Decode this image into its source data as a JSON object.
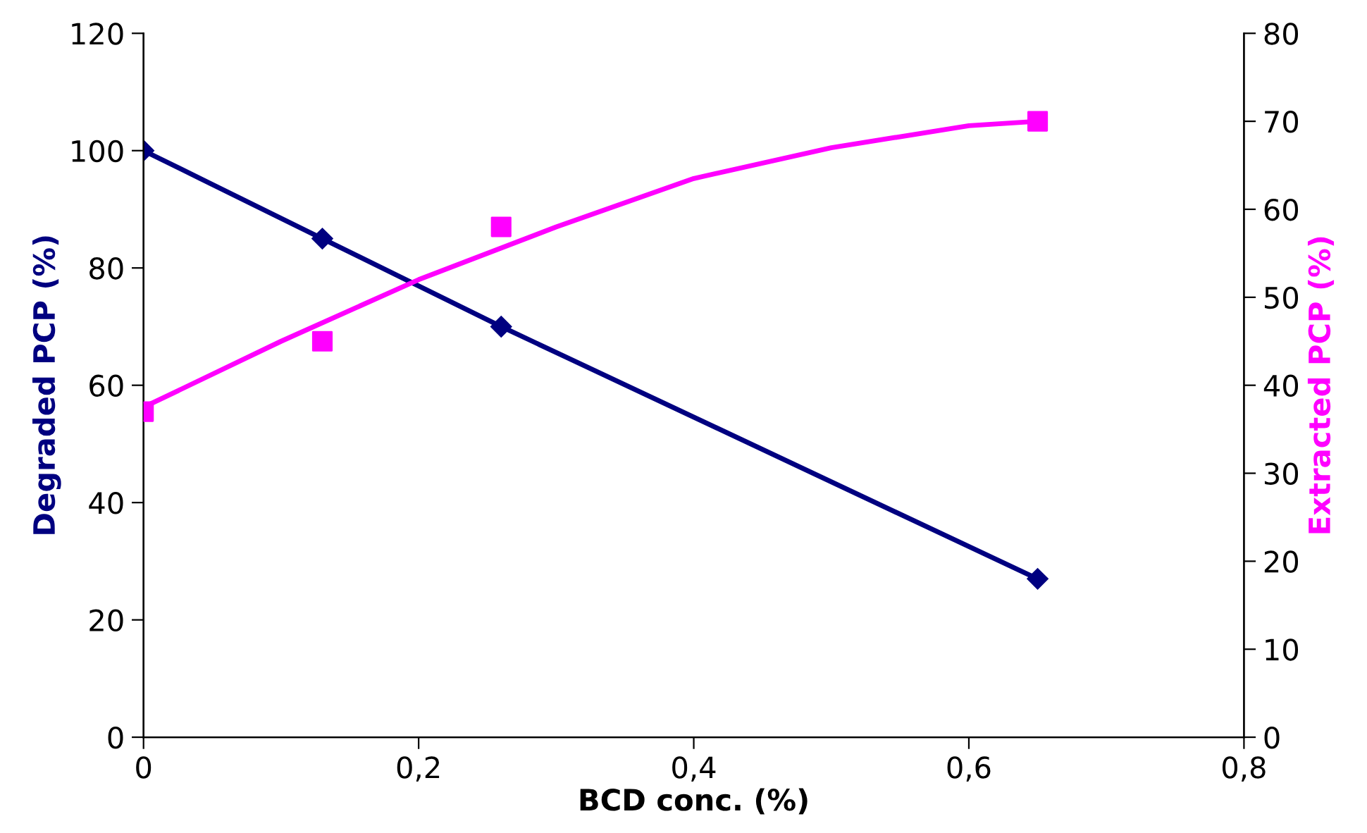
{
  "chart_data": {
    "type": "line",
    "xlabel": "BCD conc. (%)",
    "ylabel": "Degraded PCP (%)",
    "y2label": "Extracted PCP (%)",
    "xlim": [
      0,
      0.8
    ],
    "xticks": [
      0,
      {
        "value": 0.2,
        "label": "0,2"
      },
      {
        "value": 0.4,
        "label": "0,4"
      },
      {
        "value": 0.6,
        "label": "0,6"
      },
      {
        "value": 0.8,
        "label": "0,8"
      }
    ],
    "ylim": [
      0,
      120
    ],
    "yticks": [
      0,
      20,
      40,
      60,
      80,
      100,
      120
    ],
    "y2lim": [
      0,
      80
    ],
    "y2ticks": [
      0,
      10,
      20,
      30,
      40,
      50,
      60,
      70,
      80
    ],
    "grid": false,
    "legend": false,
    "series": [
      {
        "color": "#000080",
        "marker": "diamond",
        "x": [
          0,
          0.13,
          0.26,
          0.65
        ],
        "values": [
          100,
          85,
          70,
          27
        ]
      },
      {
        "type": "scatter",
        "color": "#ff00ff",
        "marker": "square",
        "axis": "y2",
        "x": [
          0,
          0.13,
          0.26,
          0.65
        ],
        "values": [
          37,
          45,
          58,
          70
        ]
      },
      {
        "type": "line",
        "color": "#ff00ff",
        "marker": "none",
        "axis": "y2",
        "x": [
          0,
          0.1,
          0.2,
          0.3,
          0.4,
          0.5,
          0.6,
          0.65
        ],
        "values": [
          37.5,
          45,
          52,
          58,
          63.5,
          67,
          69.5,
          70
        ]
      }
    ]
  }
}
